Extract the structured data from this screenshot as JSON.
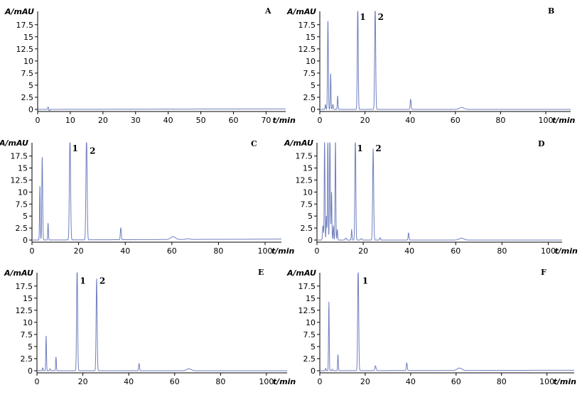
{
  "chart_data": [
    {
      "type": "line",
      "panel": "A",
      "ylabel": "A/mAU",
      "xlabel": "t/min",
      "xlim": [
        0,
        76
      ],
      "ylim": [
        -0.5,
        20
      ],
      "xticks": [
        0,
        10,
        20,
        30,
        40,
        50,
        60,
        70
      ],
      "yticks": [
        0,
        2.5,
        5,
        7.5,
        10,
        12.5,
        15,
        17.5
      ],
      "yticklabels": [
        "0",
        "2.5",
        "5",
        "7.5",
        "10",
        "12.5",
        "15",
        "17.5"
      ],
      "series": [
        {
          "color": "#6f7fbf",
          "baseline": [
            [
              0,
              0
            ],
            [
              76,
              0.1
            ]
          ],
          "peaks": [
            [
              3.2,
              0.5,
              0.1
            ],
            [
              3.6,
              -0.4,
              0.1
            ]
          ]
        }
      ],
      "peak_labels": []
    },
    {
      "type": "line",
      "panel": "B",
      "ylabel": "A/mAU",
      "xlabel": "t/min",
      "xlim": [
        0,
        111
      ],
      "ylim": [
        -0.5,
        20
      ],
      "xticks": [
        0,
        20,
        40,
        60,
        80,
        100
      ],
      "yticks": [
        0,
        2.5,
        5,
        7.5,
        10,
        12.5,
        15,
        17.5
      ],
      "yticklabels": [
        "0",
        "2.5",
        "5",
        "7.5",
        "10",
        "12.5",
        "15",
        "17.5"
      ],
      "series": [
        {
          "color": "#6f7fbf",
          "baseline": [
            [
              0,
              0
            ],
            [
              111,
              0
            ]
          ],
          "peaks": [
            [
              2.5,
              1,
              0.15
            ],
            [
              3.6,
              18.5,
              0.18
            ],
            [
              4.8,
              7.5,
              0.15
            ],
            [
              5.8,
              1,
              0.2
            ],
            [
              7.9,
              2.8,
              0.15
            ],
            [
              16.8,
              22,
              0.2
            ],
            [
              24.5,
              22,
              0.22
            ],
            [
              40.2,
              2.1,
              0.2
            ],
            [
              62.8,
              0.4,
              1.0
            ]
          ]
        }
      ],
      "peak_labels": [
        {
          "text": "1",
          "x": 19,
          "y": 18.5
        },
        {
          "text": "2",
          "x": 27,
          "y": 18.5
        }
      ]
    },
    {
      "type": "line",
      "panel": "C",
      "ylabel": "A/mAU",
      "xlabel": "t/min",
      "xlim": [
        0,
        107
      ],
      "ylim": [
        -0.5,
        20
      ],
      "xticks": [
        0,
        20,
        40,
        60,
        80,
        100
      ],
      "yticks": [
        0,
        2.5,
        5,
        7.5,
        10,
        12.5,
        15,
        17.5
      ],
      "yticklabels": [
        "0",
        "2.5",
        "5",
        "7.5",
        "10",
        "12.5",
        "15",
        "17.5"
      ],
      "series": [
        {
          "color": "#6f7fbf",
          "baseline": [
            [
              0,
              0
            ],
            [
              107,
              0.2
            ]
          ],
          "peaks": [
            [
              3.4,
              11.5,
              0.15
            ],
            [
              4.4,
              17.5,
              0.18
            ],
            [
              6.9,
              3.5,
              0.15
            ],
            [
              16.3,
              22,
              0.25
            ],
            [
              23.4,
              22,
              0.25
            ],
            [
              38.1,
              2.5,
              0.2
            ],
            [
              60.5,
              0.6,
              1.0
            ],
            [
              67,
              0.15,
              0.8
            ]
          ]
        }
      ],
      "peak_labels": [
        {
          "text": "1",
          "x": 18.5,
          "y": 18.5
        },
        {
          "text": "2",
          "x": 26,
          "y": 18
        }
      ]
    },
    {
      "type": "line",
      "panel": "D",
      "ylabel": "A/mAU",
      "xlabel": "t/min",
      "xlim": [
        0,
        106
      ],
      "ylim": [
        -0.5,
        20
      ],
      "xticks": [
        0,
        20,
        40,
        60,
        80,
        100
      ],
      "yticks": [
        0,
        2.5,
        5,
        7.5,
        10,
        12.5,
        15,
        17.5
      ],
      "yticklabels": [
        "0",
        "2.5",
        "5",
        "7.5",
        "10",
        "12.5",
        "15",
        "17.5"
      ],
      "series": [
        {
          "color": "#6f7fbf",
          "baseline": [
            [
              0,
              0
            ],
            [
              106,
              0
            ]
          ],
          "peaks": [
            [
              2.6,
              3,
              0.2
            ],
            [
              3.3,
              22,
              0.15
            ],
            [
              4.1,
              5,
              0.15
            ],
            [
              4.7,
              22,
              0.15
            ],
            [
              5.6,
              22,
              0.18
            ],
            [
              6.3,
              10,
              0.15
            ],
            [
              7.1,
              3,
              0.15
            ],
            [
              8.0,
              22,
              0.15
            ],
            [
              8.8,
              2.2,
              0.15
            ],
            [
              12.5,
              0.4,
              0.3
            ],
            [
              15.0,
              2.2,
              0.15
            ],
            [
              16.6,
              22,
              0.2
            ],
            [
              19.2,
              0.3,
              0.3
            ],
            [
              24.3,
              19,
              0.22
            ],
            [
              27.3,
              0.5,
              0.2
            ],
            [
              39.6,
              1.5,
              0.18
            ],
            [
              62.5,
              0.4,
              1.0
            ]
          ]
        }
      ],
      "peak_labels": [
        {
          "text": "1",
          "x": 18.6,
          "y": 18.5
        },
        {
          "text": "2",
          "x": 26.6,
          "y": 18.5
        }
      ]
    },
    {
      "type": "line",
      "panel": "E",
      "ylabel": "A/mAU",
      "xlabel": "t/min",
      "xlim": [
        0,
        109
      ],
      "ylim": [
        -0.5,
        20
      ],
      "xticks": [
        0,
        20,
        40,
        60,
        80,
        100
      ],
      "yticks": [
        0,
        2.5,
        5,
        7.5,
        10,
        12.5,
        15,
        17.5
      ],
      "yticklabels": [
        "0",
        "2.5",
        "5",
        "7.5",
        "10",
        "12.5",
        "15",
        "17.5"
      ],
      "series": [
        {
          "color": "#6f7fbf",
          "baseline": [
            [
              0,
              0
            ],
            [
              109,
              0
            ]
          ],
          "peaks": [
            [
              2.5,
              0.6,
              0.15
            ],
            [
              4.0,
              7.3,
              0.15
            ],
            [
              5.7,
              0.4,
              0.2
            ],
            [
              8.3,
              2.9,
              0.15
            ],
            [
              17.5,
              22,
              0.22
            ],
            [
              26.0,
              19,
              0.22
            ],
            [
              44.5,
              1.5,
              0.2
            ],
            [
              66.2,
              0.4,
              1.0
            ]
          ]
        }
      ],
      "peak_labels": [
        {
          "text": "1",
          "x": 20,
          "y": 18
        },
        {
          "text": "2",
          "x": 28.5,
          "y": 18
        }
      ]
    },
    {
      "type": "line",
      "panel": "F",
      "ylabel": "A/mAU",
      "xlabel": "t/min",
      "xlim": [
        0,
        112
      ],
      "ylim": [
        -0.5,
        20
      ],
      "xticks": [
        0,
        20,
        40,
        60,
        80,
        100
      ],
      "yticks": [
        0,
        2.5,
        5,
        7.5,
        10,
        12.5,
        15,
        17.5
      ],
      "yticklabels": [
        "0",
        "2.5",
        "5",
        "7.5",
        "10",
        "12.5",
        "15",
        "17.5"
      ],
      "series": [
        {
          "color": "#6f7fbf",
          "baseline": [
            [
              0,
              0
            ],
            [
              112,
              0.1
            ]
          ],
          "peaks": [
            [
              2.6,
              0.5,
              0.15
            ],
            [
              4.0,
              14.2,
              0.15
            ],
            [
              5.5,
              0.3,
              0.2
            ],
            [
              8.0,
              3.3,
              0.15
            ],
            [
              16.9,
              22,
              0.22
            ],
            [
              24.5,
              1.0,
              0.25
            ],
            [
              38.3,
              1.6,
              0.2
            ],
            [
              61.5,
              0.5,
              1.0
            ]
          ]
        }
      ],
      "peak_labels": [
        {
          "text": "1",
          "x": 20,
          "y": 18
        }
      ]
    }
  ]
}
